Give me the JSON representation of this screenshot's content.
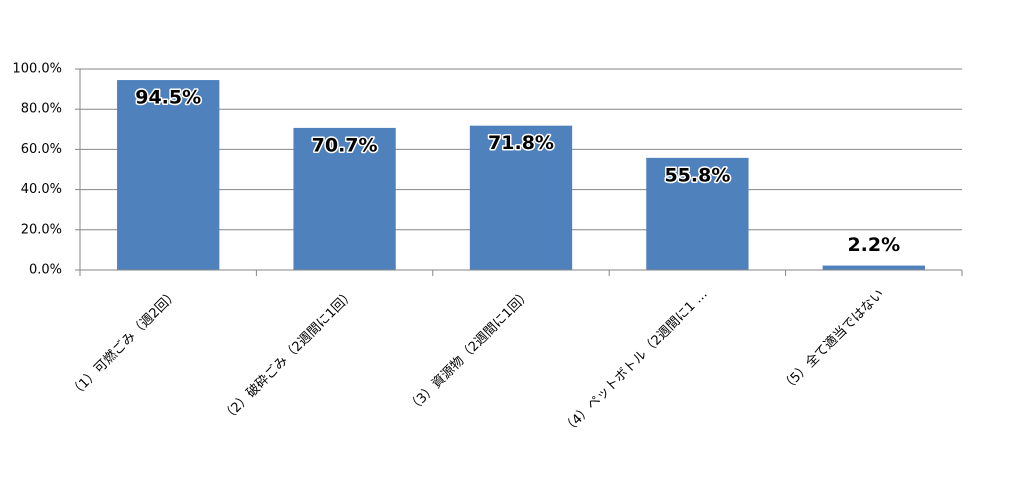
{
  "chart_data": {
    "type": "bar",
    "categories": [
      "（1）可燃ごみ（週2回）",
      "（2）破砕ごみ（2週間に1回）",
      "（3）資源物（2週間に1回）",
      "（4）ペットボトル（2週間に1 …",
      "（5）全て適当ではない"
    ],
    "values": [
      94.5,
      70.7,
      71.8,
      55.8,
      2.2
    ],
    "value_labels": [
      "94.5%",
      "70.7%",
      "71.8%",
      "55.8%",
      "2.2%"
    ],
    "color": "#4f81bd",
    "ylim": [
      0,
      100
    ],
    "yticks": [
      {
        "value": 0,
        "label": "0.0%"
      },
      {
        "value": 20,
        "label": "20.0%"
      },
      {
        "value": 40,
        "label": "40.0%"
      },
      {
        "value": 60,
        "label": "60.0%"
      },
      {
        "value": 80,
        "label": "80.0%"
      },
      {
        "value": 100,
        "label": "100.0%"
      }
    ],
    "grid": true
  }
}
